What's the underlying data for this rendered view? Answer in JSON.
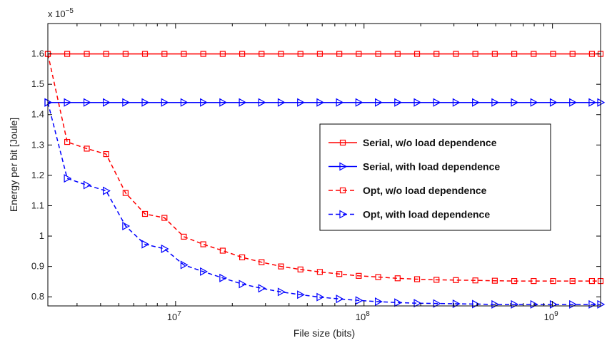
{
  "chart_data": {
    "type": "line",
    "title": "",
    "xlabel": "File size (bits)",
    "ylabel": "Energy per bit [Joule]",
    "x_scale": "log",
    "xlim": [
      2100000,
      1800000000
    ],
    "ylim": [
      7.7e-06,
      1.7e-05
    ],
    "y_exponent_label": "x 10",
    "y_exponent_power": "−5",
    "y_ticks": [
      0.8,
      0.9,
      1.0,
      1.1,
      1.2,
      1.3,
      1.4,
      1.5,
      1.6
    ],
    "y_tick_labels": [
      "0.8",
      "0.9",
      "1",
      "1.1",
      "1.2",
      "1.3",
      "1.4",
      "1.5",
      "1.6"
    ],
    "x_ticks": [
      10000000,
      100000000,
      1000000000
    ],
    "x_tick_base": "10",
    "x_tick_exponents": [
      "7",
      "8",
      "9"
    ],
    "grid": false,
    "legend_position": "right",
    "x": [
      2100000,
      2660000,
      3380000,
      4280000,
      5430000,
      6880000,
      8730000,
      11060000,
      14030000,
      17790000,
      22560000,
      28600000,
      36270000,
      45990000,
      58310000,
      73940000,
      93760000,
      118900000,
      150800000,
      191200000,
      242400000,
      307400000,
      389800000,
      494300000,
      626800000,
      794800000,
      1007800000,
      1278000000,
      1620000000,
      1800000000
    ],
    "series": [
      {
        "name": "Serial, w/o load dependence",
        "color": "#ff0000",
        "dashed": false,
        "marker": "square",
        "values": [
          1.6e-05,
          1.6e-05,
          1.6e-05,
          1.6e-05,
          1.6e-05,
          1.6e-05,
          1.6e-05,
          1.6e-05,
          1.6e-05,
          1.6e-05,
          1.6e-05,
          1.6e-05,
          1.6e-05,
          1.6e-05,
          1.6e-05,
          1.6e-05,
          1.6e-05,
          1.6e-05,
          1.6e-05,
          1.6e-05,
          1.6e-05,
          1.6e-05,
          1.6e-05,
          1.6e-05,
          1.6e-05,
          1.6e-05,
          1.6e-05,
          1.6e-05,
          1.6e-05,
          1.6e-05
        ]
      },
      {
        "name": "Serial, with load dependence",
        "color": "#0000ff",
        "dashed": false,
        "marker": "triangle-right",
        "values": [
          1.44e-05,
          1.44e-05,
          1.44e-05,
          1.44e-05,
          1.44e-05,
          1.44e-05,
          1.44e-05,
          1.44e-05,
          1.44e-05,
          1.44e-05,
          1.44e-05,
          1.44e-05,
          1.44e-05,
          1.44e-05,
          1.44e-05,
          1.44e-05,
          1.44e-05,
          1.44e-05,
          1.44e-05,
          1.44e-05,
          1.44e-05,
          1.44e-05,
          1.44e-05,
          1.44e-05,
          1.44e-05,
          1.44e-05,
          1.44e-05,
          1.44e-05,
          1.44e-05,
          1.44e-05
        ]
      },
      {
        "name": "Opt, w/o load dependence",
        "color": "#ff0000",
        "dashed": true,
        "marker": "square",
        "values": [
          1.6e-05,
          1.31e-05,
          1.288e-05,
          1.27e-05,
          1.142e-05,
          1.073e-05,
          1.06e-05,
          9.98e-06,
          9.73e-06,
          9.52e-06,
          9.3e-06,
          9.14e-06,
          9e-06,
          8.9e-06,
          8.82e-06,
          8.75e-06,
          8.69e-06,
          8.65e-06,
          8.61e-06,
          8.58e-06,
          8.56e-06,
          8.55e-06,
          8.54e-06,
          8.53e-06,
          8.52e-06,
          8.52e-06,
          8.52e-06,
          8.52e-06,
          8.52e-06,
          8.52e-06
        ]
      },
      {
        "name": "Opt, with load dependence",
        "color": "#0000ff",
        "dashed": true,
        "marker": "triangle-right",
        "values": [
          1.44e-05,
          1.19e-05,
          1.168e-05,
          1.149e-05,
          1.033e-05,
          9.73e-06,
          9.58e-06,
          9.05e-06,
          8.83e-06,
          8.62e-06,
          8.42e-06,
          8.28e-06,
          8.16e-06,
          8.07e-06,
          7.99e-06,
          7.93e-06,
          7.88e-06,
          7.84e-06,
          7.81e-06,
          7.79e-06,
          7.78e-06,
          7.77e-06,
          7.76e-06,
          7.75e-06,
          7.75e-06,
          7.75e-06,
          7.75e-06,
          7.75e-06,
          7.75e-06,
          7.75e-06
        ]
      }
    ]
  }
}
